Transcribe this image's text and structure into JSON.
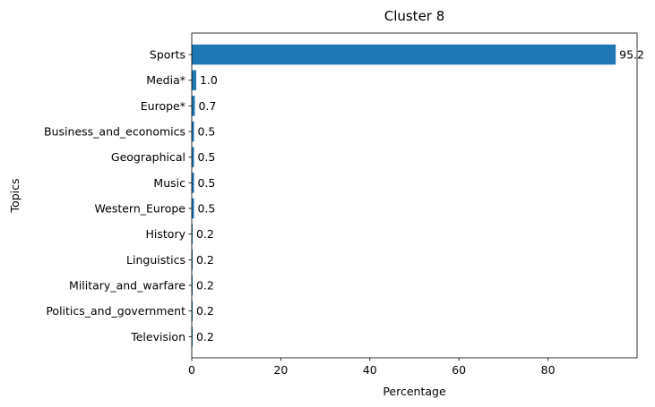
{
  "chart_data": {
    "type": "bar",
    "orientation": "horizontal",
    "title": "Cluster 8",
    "xlabel": "Percentage",
    "ylabel": "Topics",
    "categories": [
      "Sports",
      "Media*",
      "Europe*",
      "Business_and_economics",
      "Geographical",
      "Music",
      "Western_Europe",
      "History",
      "Linguistics",
      "Military_and_warfare",
      "Politics_and_government",
      "Television"
    ],
    "values": [
      95.2,
      1.0,
      0.7,
      0.5,
      0.5,
      0.5,
      0.5,
      0.2,
      0.2,
      0.2,
      0.2,
      0.2
    ],
    "data_labels": [
      "95.2",
      "1.0",
      "0.7",
      "0.5",
      "0.5",
      "0.5",
      "0.5",
      "0.2",
      "0.2",
      "0.2",
      "0.2",
      "0.2"
    ],
    "xlim": [
      0,
      100
    ],
    "xticks": [
      0,
      20,
      40,
      60,
      80
    ],
    "xtick_labels": [
      "0",
      "20",
      "40",
      "60",
      "80"
    ],
    "grid": false,
    "legend": "none",
    "bar_color": "#1f77b4"
  }
}
